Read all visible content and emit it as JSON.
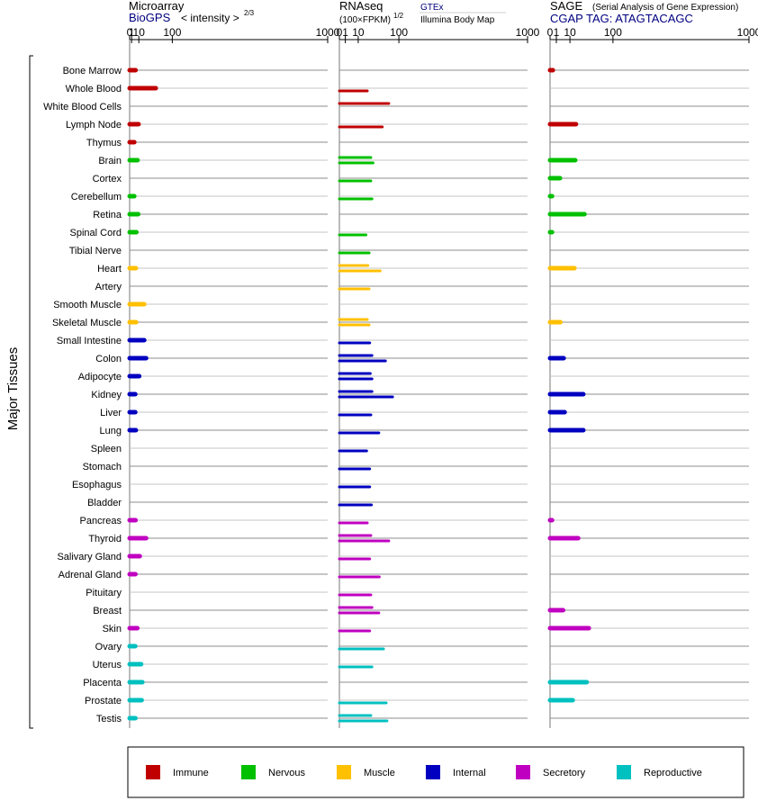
{
  "header": {
    "microarray": {
      "title": "Microarray",
      "source": "BioGPS",
      "scale": "< intensity >",
      "exponent": "2/3"
    },
    "rnaseq": {
      "title": "RNAseq",
      "scale": "(100×FPKM)",
      "exponent": "1/2",
      "source_a": "GTEx",
      "source_b": "Illumina Body Map"
    },
    "sage": {
      "title": "SAGE",
      "subtitle": "(Serial Analysis of Gene Expression)",
      "tag": "CGAP TAG: ATAGTACAGC"
    }
  },
  "y_axis_label": "Major Tissues",
  "chart_data": {
    "type": "bar",
    "ticks": [
      "0",
      "1",
      "10",
      "100",
      "1000"
    ],
    "tick_values": [
      0,
      1,
      10,
      100,
      1000
    ],
    "xlim": [
      0,
      1000
    ],
    "categories": [
      "Bone Marrow",
      "Whole Blood",
      "White Blood Cells",
      "Lymph Node",
      "Thymus",
      "Brain",
      "Cortex",
      "Cerebellum",
      "Retina",
      "Spinal Cord",
      "Tibial Nerve",
      "Heart",
      "Artery",
      "Smooth Muscle",
      "Skeletal Muscle",
      "Small Intestine",
      "Colon",
      "Adipocyte",
      "Kidney",
      "Liver",
      "Lung",
      "Spleen",
      "Stomach",
      "Esophagus",
      "Bladder",
      "Pancreas",
      "Thyroid",
      "Salivary Gland",
      "Adrenal Gland",
      "Pituitary",
      "Breast",
      "Skin",
      "Ovary",
      "Uterus",
      "Placenta",
      "Prostate",
      "Testis"
    ],
    "groups": [
      "Immune",
      "Immune",
      "Immune",
      "Immune",
      "Immune",
      "Nervous",
      "Nervous",
      "Nervous",
      "Nervous",
      "Nervous",
      "Nervous",
      "Muscle",
      "Muscle",
      "Muscle",
      "Muscle",
      "Internal",
      "Internal",
      "Internal",
      "Internal",
      "Internal",
      "Internal",
      "Internal",
      "Internal",
      "Internal",
      "Internal",
      "Secretory",
      "Secretory",
      "Secretory",
      "Secretory",
      "Secretory",
      "Secretory",
      "Secretory",
      "Reproductive",
      "Reproductive",
      "Reproductive",
      "Reproductive",
      "Reproductive"
    ],
    "legend": [
      {
        "name": "Immune",
        "color": "#c00000"
      },
      {
        "name": "Nervous",
        "color": "#00c000"
      },
      {
        "name": "Muscle",
        "color": "#ffc000"
      },
      {
        "name": "Internal",
        "color": "#0000c0"
      },
      {
        "name": "Secretory",
        "color": "#c000c0"
      },
      {
        "name": "Reproductive",
        "color": "#00c0c0"
      }
    ],
    "legend_position": "bottom",
    "grid": true,
    "microarray": [
      5.2,
      48,
      null,
      9.6,
      3.6,
      8,
      null,
      3.6,
      9,
      6.3,
      null,
      5.6,
      null,
      20,
      5.9,
      20,
      24,
      10.6,
      4.8,
      4.8,
      5.6,
      null,
      null,
      null,
      null,
      5.2,
      24,
      11.6,
      5,
      null,
      null,
      7.7,
      4.8,
      14,
      16.3,
      15,
      5
    ],
    "rnaseq_gtex": [
      null,
      null,
      69,
      null,
      null,
      28,
      null,
      null,
      null,
      null,
      null,
      23,
      null,
      null,
      22,
      null,
      30,
      27,
      30,
      null,
      null,
      null,
      null,
      null,
      null,
      null,
      28,
      null,
      null,
      null,
      30,
      null,
      null,
      null,
      null,
      null,
      28
    ],
    "rnaseq_ibm": [
      null,
      22,
      null,
      52,
      null,
      32,
      28,
      30,
      null,
      20,
      25,
      47,
      25,
      null,
      25,
      26,
      60,
      30,
      80,
      28,
      44,
      21,
      26,
      26,
      29,
      22,
      69,
      26,
      45,
      28,
      44,
      26,
      55,
      30,
      null,
      62,
      64
    ],
    "sage": [
      0.2,
      null,
      null,
      17,
      null,
      16,
      2.5,
      0.1,
      30,
      0.1,
      null,
      15,
      null,
      null,
      2.7,
      null,
      4.7,
      null,
      28,
      5.4,
      28,
      null,
      null,
      null,
      null,
      0.1,
      20,
      null,
      null,
      null,
      4.3,
      38,
      null,
      null,
      34,
      13,
      null
    ]
  }
}
